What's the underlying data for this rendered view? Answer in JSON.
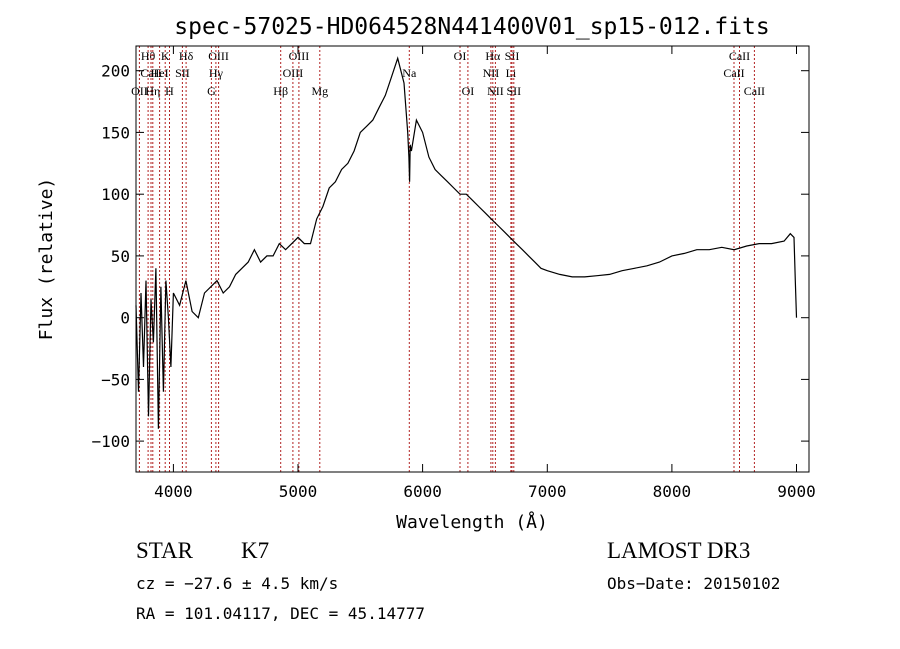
{
  "chart_data": {
    "type": "line",
    "title": "spec-57025-HD064528N441400V01_sp15-012.fits",
    "xlabel": "Wavelength (Å)",
    "ylabel": "Flux (relative)",
    "xlim": [
      3700,
      9100
    ],
    "ylim": [
      -125,
      220
    ],
    "x_ticks": [
      4000,
      5000,
      6000,
      7000,
      8000,
      9000
    ],
    "y_ticks": [
      -100,
      -50,
      0,
      50,
      100,
      150,
      200
    ],
    "grid": false,
    "series": [
      {
        "name": "flux",
        "x": [
          3700,
          3720,
          3740,
          3760,
          3780,
          3800,
          3820,
          3840,
          3860,
          3880,
          3900,
          3920,
          3940,
          3960,
          3980,
          4000,
          4050,
          4100,
          4150,
          4200,
          4250,
          4300,
          4350,
          4400,
          4450,
          4500,
          4550,
          4600,
          4650,
          4700,
          4750,
          4800,
          4850,
          4900,
          4950,
          5000,
          5050,
          5100,
          5150,
          5200,
          5250,
          5300,
          5350,
          5400,
          5450,
          5500,
          5550,
          5600,
          5650,
          5700,
          5750,
          5800,
          5850,
          5880,
          5890,
          5895,
          5900,
          5910,
          5950,
          6000,
          6050,
          6100,
          6150,
          6200,
          6250,
          6300,
          6350,
          6400,
          6450,
          6500,
          6550,
          6600,
          6650,
          6700,
          6750,
          6800,
          6850,
          6900,
          6950,
          7000,
          7100,
          7200,
          7300,
          7400,
          7500,
          7600,
          7700,
          7800,
          7900,
          8000,
          8100,
          8200,
          8300,
          8400,
          8500,
          8600,
          8700,
          8800,
          8900,
          8950,
          8980,
          8990,
          9000
        ],
        "y": [
          10,
          -60,
          20,
          -40,
          30,
          -80,
          15,
          -20,
          40,
          -90,
          25,
          -60,
          30,
          0,
          -40,
          20,
          10,
          30,
          5,
          0,
          20,
          25,
          30,
          20,
          25,
          35,
          40,
          45,
          55,
          45,
          50,
          50,
          60,
          55,
          60,
          65,
          60,
          60,
          80,
          90,
          105,
          110,
          120,
          125,
          135,
          150,
          155,
          160,
          170,
          180,
          195,
          210,
          190,
          150,
          130,
          110,
          140,
          135,
          160,
          150,
          130,
          120,
          115,
          110,
          105,
          100,
          100,
          95,
          90,
          85,
          80,
          75,
          70,
          65,
          60,
          55,
          50,
          45,
          40,
          38,
          35,
          33,
          33,
          34,
          35,
          38,
          40,
          42,
          45,
          50,
          52,
          55,
          55,
          57,
          55,
          58,
          60,
          60,
          62,
          68,
          65,
          30,
          0
        ]
      }
    ],
    "lines": [
      {
        "label": "Hθ",
        "x": 3797,
        "row": 1
      },
      {
        "label": "CaII",
        "x": 3820,
        "row": 2
      },
      {
        "label": "OII",
        "x": 3727,
        "row": 3
      },
      {
        "label": "Hη",
        "x": 3835,
        "row": 3
      },
      {
        "label": "K",
        "x": 3934,
        "row": 1
      },
      {
        "label": "HeI",
        "x": 3889,
        "row": 2
      },
      {
        "label": "H",
        "x": 3969,
        "row": 3
      },
      {
        "label": "SII",
        "x": 4072,
        "row": 2
      },
      {
        "label": "Hδ",
        "x": 4102,
        "row": 1
      },
      {
        "label": "OIII",
        "x": 4363,
        "row": 1
      },
      {
        "label": "Hγ",
        "x": 4341,
        "row": 2
      },
      {
        "label": "G",
        "x": 4305,
        "row": 3
      },
      {
        "label": "OIII",
        "x": 5007,
        "row": 1
      },
      {
        "label": "OIII",
        "x": 4959,
        "row": 2
      },
      {
        "label": "Hβ",
        "x": 4861,
        "row": 3
      },
      {
        "label": "Mg",
        "x": 5175,
        "row": 3
      },
      {
        "label": "Na",
        "x": 5893,
        "row": 2
      },
      {
        "label": "OI",
        "x": 6300,
        "row": 1
      },
      {
        "label": "OI",
        "x": 6363,
        "row": 3
      },
      {
        "label": "Hα",
        "x": 6563,
        "row": 1
      },
      {
        "label": "NII",
        "x": 6548,
        "row": 2
      },
      {
        "label": "NII",
        "x": 6584,
        "row": 3
      },
      {
        "label": "SII",
        "x": 6717,
        "row": 1
      },
      {
        "label": "Li",
        "x": 6708,
        "row": 2
      },
      {
        "label": "SII",
        "x": 6731,
        "row": 3
      },
      {
        "label": "CaII",
        "x": 8542,
        "row": 1
      },
      {
        "label": "CaII",
        "x": 8498,
        "row": 2
      },
      {
        "label": "CaII",
        "x": 8662,
        "row": 3
      }
    ]
  },
  "info": {
    "object_class": "STAR",
    "subclass": "K7",
    "survey": "LAMOST DR3",
    "cz": "cz = −27.6 ± 4.5 km/s",
    "obs_date": "Obs−Date: 20150102",
    "coords": "RA = 101.04117, DEC =  45.14777"
  }
}
